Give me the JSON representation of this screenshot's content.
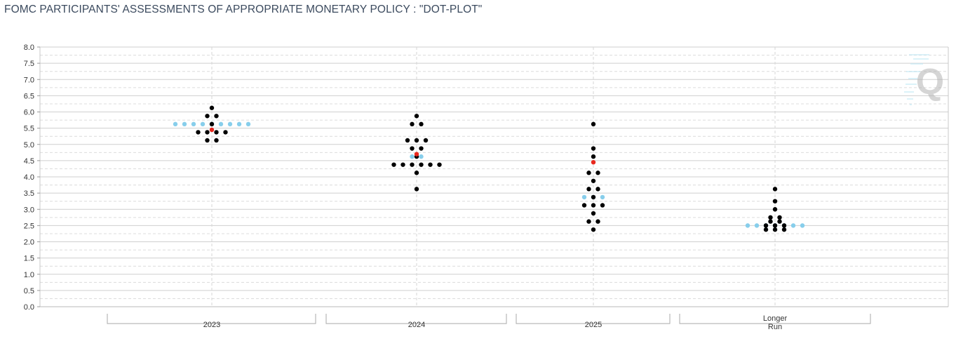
{
  "title": "FOMC PARTICIPANTS' ASSESSMENTS OF APPROPRIATE MONETARY POLICY : \"DOT-PLOT\"",
  "watermark": "Q",
  "chart_data": {
    "type": "scatter",
    "title": "FOMC PARTICIPANTS' ASSESSMENTS OF APPROPRIATE MONETARY POLICY : \"DOT-PLOT\"",
    "ylim": [
      0,
      8
    ],
    "y_ticks": [
      "0.0",
      "0.5",
      "1.0",
      "1.5",
      "2.0",
      "2.5",
      "3.0",
      "3.5",
      "4.0",
      "4.5",
      "5.0",
      "5.5",
      "6.0",
      "6.5",
      "7.0",
      "7.5",
      "8.0"
    ],
    "grid": true,
    "categories": [
      "2023",
      "2024",
      "2025",
      "Longer Run"
    ],
    "category_labels": [
      [
        "2023"
      ],
      [
        "2024"
      ],
      [
        "2025"
      ],
      [
        "Longer",
        "Run"
      ]
    ],
    "colors": {
      "participant": "#000000",
      "median": "#e8281e",
      "futures": "#87ceeb",
      "grid": "#d0d0d0"
    },
    "series": [
      {
        "role": "participant",
        "points": [
          {
            "x": "2023",
            "y": 6.125,
            "count": 1
          },
          {
            "x": "2023",
            "y": 5.875,
            "count": 2
          },
          {
            "x": "2023",
            "y": 5.625,
            "count": 1
          },
          {
            "x": "2023",
            "y": 5.375,
            "count": 4
          },
          {
            "x": "2023",
            "y": 5.125,
            "count": 2
          },
          {
            "x": "2024",
            "y": 5.875,
            "count": 1
          },
          {
            "x": "2024",
            "y": 5.625,
            "count": 2
          },
          {
            "x": "2024",
            "y": 5.125,
            "count": 3
          },
          {
            "x": "2024",
            "y": 4.875,
            "count": 2
          },
          {
            "x": "2024",
            "y": 4.625,
            "count": 1
          },
          {
            "x": "2024",
            "y": 4.375,
            "count": 6
          },
          {
            "x": "2024",
            "y": 4.125,
            "count": 1
          },
          {
            "x": "2024",
            "y": 3.625,
            "count": 1
          },
          {
            "x": "2025",
            "y": 5.625,
            "count": 1
          },
          {
            "x": "2025",
            "y": 4.875,
            "count": 1
          },
          {
            "x": "2025",
            "y": 4.625,
            "count": 1
          },
          {
            "x": "2025",
            "y": 4.125,
            "count": 2
          },
          {
            "x": "2025",
            "y": 3.875,
            "count": 1
          },
          {
            "x": "2025",
            "y": 3.625,
            "count": 2
          },
          {
            "x": "2025",
            "y": 3.375,
            "count": 1
          },
          {
            "x": "2025",
            "y": 3.125,
            "count": 3
          },
          {
            "x": "2025",
            "y": 2.875,
            "count": 1
          },
          {
            "x": "2025",
            "y": 2.625,
            "count": 2
          },
          {
            "x": "2025",
            "y": 2.375,
            "count": 1
          },
          {
            "x": "Longer Run",
            "y": 3.625,
            "count": 1
          },
          {
            "x": "Longer Run",
            "y": 3.25,
            "count": 1
          },
          {
            "x": "Longer Run",
            "y": 3.0,
            "count": 1
          },
          {
            "x": "Longer Run",
            "y": 2.75,
            "count": 2
          },
          {
            "x": "Longer Run",
            "y": 2.625,
            "count": 2
          },
          {
            "x": "Longer Run",
            "y": 2.5,
            "count": 3
          },
          {
            "x": "Longer Run",
            "y": 2.375,
            "count": 3
          }
        ]
      },
      {
        "role": "median",
        "points": [
          {
            "x": "2023",
            "y": 5.45
          },
          {
            "x": "2024",
            "y": 4.7
          },
          {
            "x": "2025",
            "y": 4.45
          }
        ]
      },
      {
        "role": "futures",
        "points": [
          {
            "x": "2023",
            "y": 5.625,
            "count": 9
          },
          {
            "x": "2024",
            "y": 4.625,
            "count": 2
          },
          {
            "x": "2025",
            "y": 3.375,
            "count": 3
          },
          {
            "x": "Longer Run",
            "y": 2.5,
            "count": 7
          }
        ]
      }
    ]
  }
}
